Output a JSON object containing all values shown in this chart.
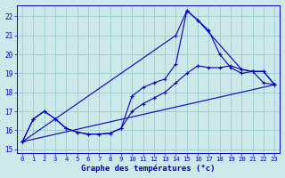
{
  "xlabel": "Graphe des températures (°c)",
  "bg_color": "#cce8e8",
  "grid_color": "#99cccc",
  "line_color": "#0000bb",
  "xlim": [
    -0.5,
    23.5
  ],
  "ylim": [
    14.8,
    22.6
  ],
  "yticks": [
    15,
    16,
    17,
    18,
    19,
    20,
    21,
    22
  ],
  "xticks": [
    0,
    1,
    2,
    3,
    4,
    5,
    6,
    7,
    8,
    9,
    10,
    11,
    12,
    13,
    14,
    15,
    16,
    17,
    18,
    19,
    20,
    21,
    22,
    23
  ],
  "line1_x": [
    0,
    1,
    2,
    3,
    4,
    5,
    6,
    7,
    8,
    9,
    10,
    11,
    12,
    13,
    14,
    15,
    16,
    17,
    18,
    19,
    20,
    21,
    22,
    23
  ],
  "line1_y": [
    15.4,
    16.6,
    17.0,
    16.6,
    16.1,
    15.9,
    15.8,
    15.8,
    15.85,
    16.1,
    17.0,
    17.4,
    17.7,
    18.0,
    18.5,
    19.0,
    19.4,
    19.3,
    19.3,
    19.4,
    19.2,
    19.1,
    19.1,
    18.4
  ],
  "line2_x": [
    0,
    1,
    2,
    3,
    4,
    5,
    6,
    7,
    8,
    9,
    10,
    11,
    12,
    13,
    14,
    15,
    16,
    17,
    18,
    19,
    20,
    21,
    22,
    23
  ],
  "line2_y": [
    15.4,
    16.6,
    17.0,
    16.6,
    16.1,
    15.9,
    15.8,
    15.8,
    15.85,
    16.1,
    17.8,
    18.25,
    18.5,
    18.7,
    19.5,
    22.3,
    21.8,
    21.25,
    20.0,
    19.3,
    19.0,
    19.1,
    18.5,
    18.4
  ],
  "line3_x": [
    0,
    14,
    15,
    16,
    20,
    21,
    22,
    23
  ],
  "line3_y": [
    15.4,
    21.0,
    22.3,
    21.8,
    19.2,
    19.1,
    19.1,
    18.4
  ],
  "line4_x": [
    0,
    23
  ],
  "line4_y": [
    15.4,
    18.4
  ]
}
